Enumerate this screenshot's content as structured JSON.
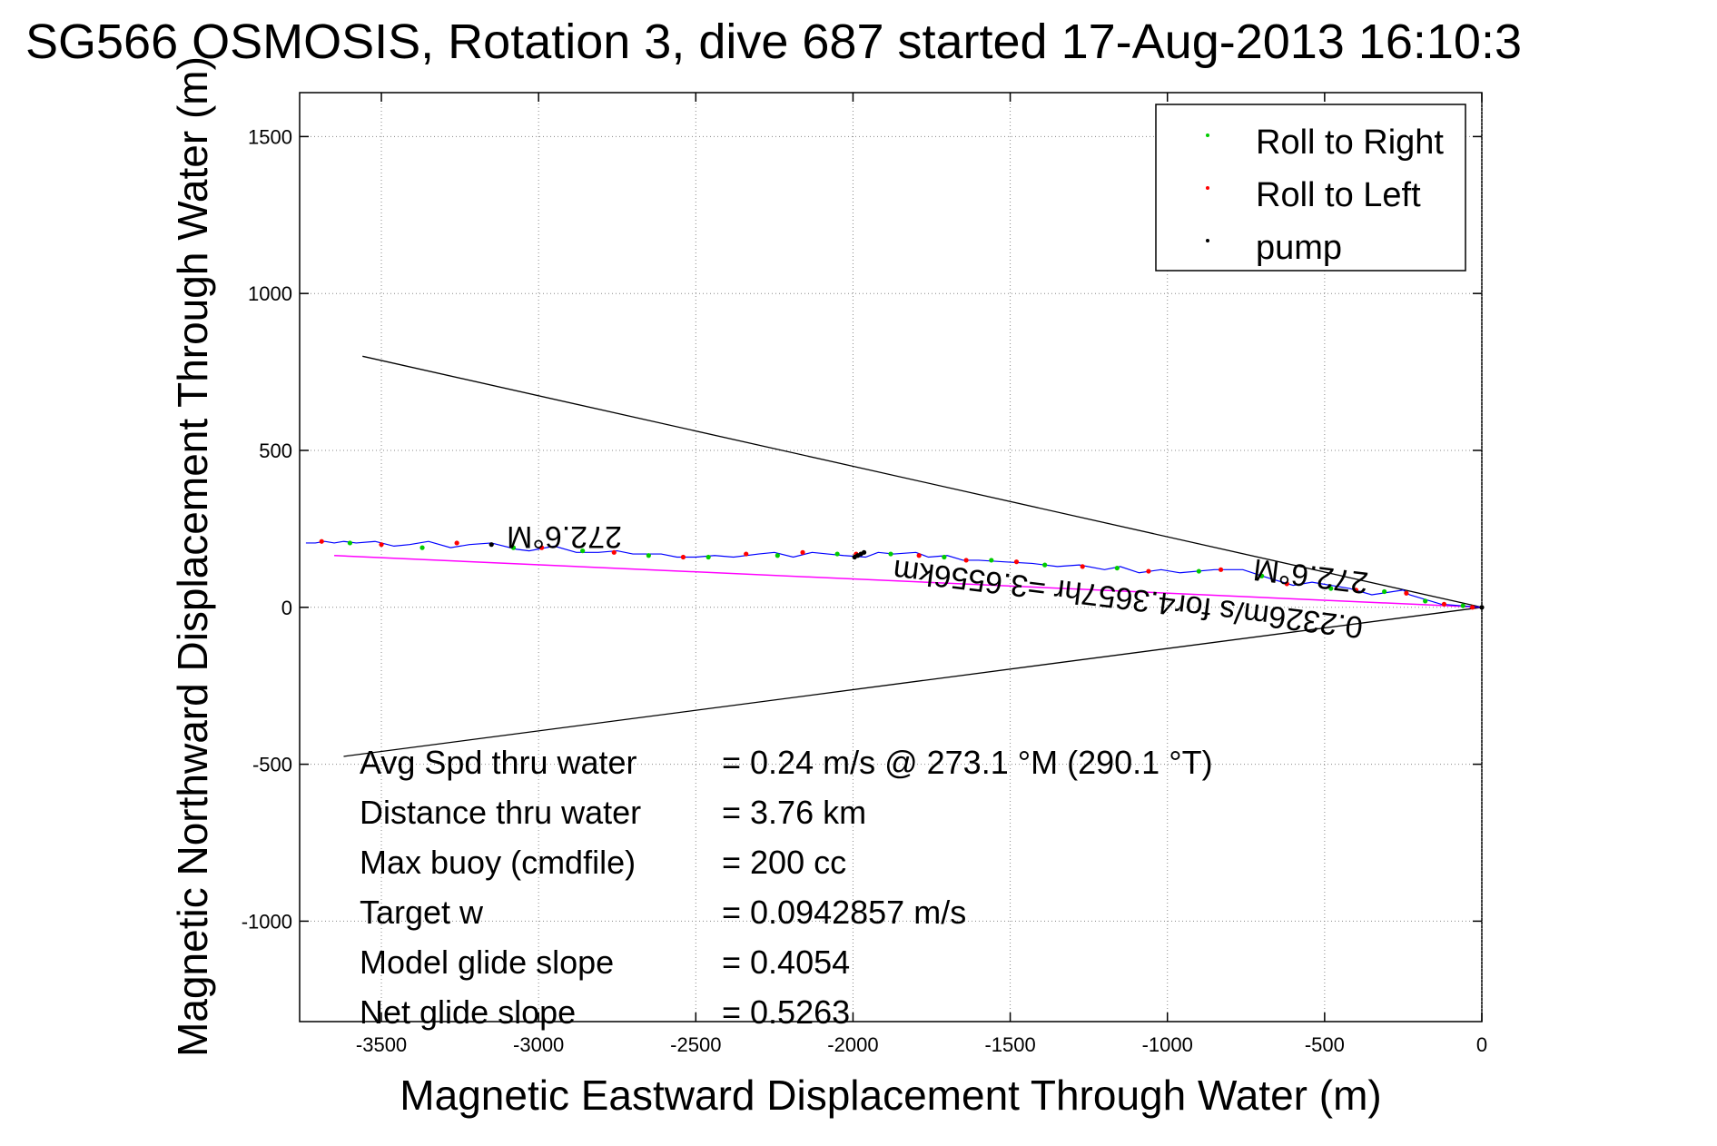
{
  "chart_data": {
    "type": "line",
    "title": "SG566 OSMOSIS, Rotation 3, dive 687 started 17-Aug-2013 16:10:3",
    "xlabel": "Magnetic Eastward Displacement Through Water (m)",
    "ylabel": "Magnetic Northward Displacement Through Water (m)",
    "xlim": [
      -3760,
      0
    ],
    "ylim": [
      -1320,
      1640
    ],
    "grid": true,
    "x_ticks": [
      -3500,
      -3000,
      -2500,
      -2000,
      -1500,
      -1000,
      -500,
      0
    ],
    "y_ticks": [
      1500,
      1000,
      500,
      0,
      -500,
      -1000
    ],
    "legend": {
      "placement": "top-right",
      "entries": [
        {
          "label": "Roll to Right",
          "color": "#00cc00"
        },
        {
          "label": "Roll to Left",
          "color": "#ff0000"
        },
        {
          "label": "pump",
          "color": "#000000"
        }
      ]
    },
    "track": {
      "color": "#0000ff",
      "x": [
        0,
        -130,
        -230,
        -250,
        -350,
        -420,
        -540,
        -600,
        -700,
        -760,
        -850,
        -960,
        -1020,
        -1090,
        -1150,
        -1200,
        -1280,
        -1350,
        -1430,
        -1520,
        -1600,
        -1650,
        -1700,
        -1760,
        -1800,
        -1870,
        -1920,
        -1960,
        -2030,
        -2080,
        -2130,
        -2190,
        -2250,
        -2300,
        -2380,
        -2440,
        -2500,
        -2560,
        -2610,
        -2700,
        -2750,
        -2810,
        -2880,
        -2950,
        -3030,
        -3070,
        -3150,
        -3220,
        -3280,
        -3350,
        -3410,
        -3460,
        -3520,
        -3580,
        -3620,
        -3650,
        -3680,
        -3710,
        -3740
      ],
      "y": [
        0,
        10,
        40,
        55,
        40,
        60,
        80,
        70,
        100,
        120,
        120,
        110,
        120,
        110,
        130,
        120,
        135,
        130,
        140,
        145,
        150,
        150,
        165,
        160,
        175,
        170,
        175,
        160,
        165,
        170,
        175,
        160,
        175,
        170,
        160,
        165,
        160,
        160,
        170,
        170,
        180,
        175,
        175,
        195,
        180,
        185,
        205,
        200,
        190,
        210,
        200,
        195,
        210,
        205,
        210,
        205,
        210,
        205,
        205
      ]
    },
    "roll_right_points": {
      "color": "#00cc00",
      "x": [
        -60,
        -180,
        -310,
        -480,
        -700,
        -900,
        -1160,
        -1390,
        -1560,
        -1710,
        -1880,
        -2050,
        -2240,
        -2460,
        -2650,
        -2860,
        -3080,
        -3370,
        -3600
      ],
      "y": [
        5,
        20,
        50,
        60,
        100,
        115,
        125,
        135,
        150,
        160,
        170,
        170,
        165,
        160,
        165,
        180,
        190,
        190,
        205
      ]
    },
    "roll_left_points": {
      "color": "#ff0000",
      "x": [
        -30,
        -120,
        -240,
        -400,
        -620,
        -830,
        -1060,
        -1270,
        -1480,
        -1640,
        -1790,
        -1990,
        -2160,
        -2340,
        -2540,
        -2760,
        -2990,
        -3260,
        -3500,
        -3690
      ],
      "y": [
        0,
        10,
        45,
        55,
        75,
        120,
        115,
        130,
        145,
        150,
        165,
        170,
        175,
        170,
        160,
        175,
        190,
        205,
        200,
        210
      ]
    },
    "pump_points": {
      "color": "#000000",
      "x": [
        0,
        -1985,
        -1975,
        -1965,
        -1995,
        -3150
      ],
      "y": [
        0,
        165,
        170,
        175,
        160,
        200
      ]
    },
    "mean_line": {
      "color": "#ff00ff",
      "x": [
        0,
        -3650
      ],
      "y": [
        0,
        165
      ]
    },
    "cone_lines": {
      "color": "#000000",
      "lines": [
        {
          "x": [
            0,
            -3560
          ],
          "y": [
            0,
            800
          ]
        },
        {
          "x": [
            0,
            -3620
          ],
          "y": [
            0,
            -475
          ]
        }
      ]
    },
    "annotations": {
      "heading_label_1": "272.6°M",
      "heading_label_2": "272.6°M",
      "speed_label": "0.2326m/s for4.3657hr =3.6556km",
      "stats": [
        {
          "label": "Avg Spd thru water",
          "value": "=  0.24 m/s @ 273.1 °M (290.1 °T)"
        },
        {
          "label": "Distance thru water",
          "value": "=  3.76 km"
        },
        {
          "label": "Max buoy (cmdfile)",
          "value": "= 200 cc"
        },
        {
          "label": "Target w",
          "value": "= 0.0942857 m/s"
        },
        {
          "label": "Model glide slope",
          "value": "= 0.4054"
        },
        {
          "label": "Net glide slope",
          "value": "= 0.5263"
        }
      ]
    }
  }
}
